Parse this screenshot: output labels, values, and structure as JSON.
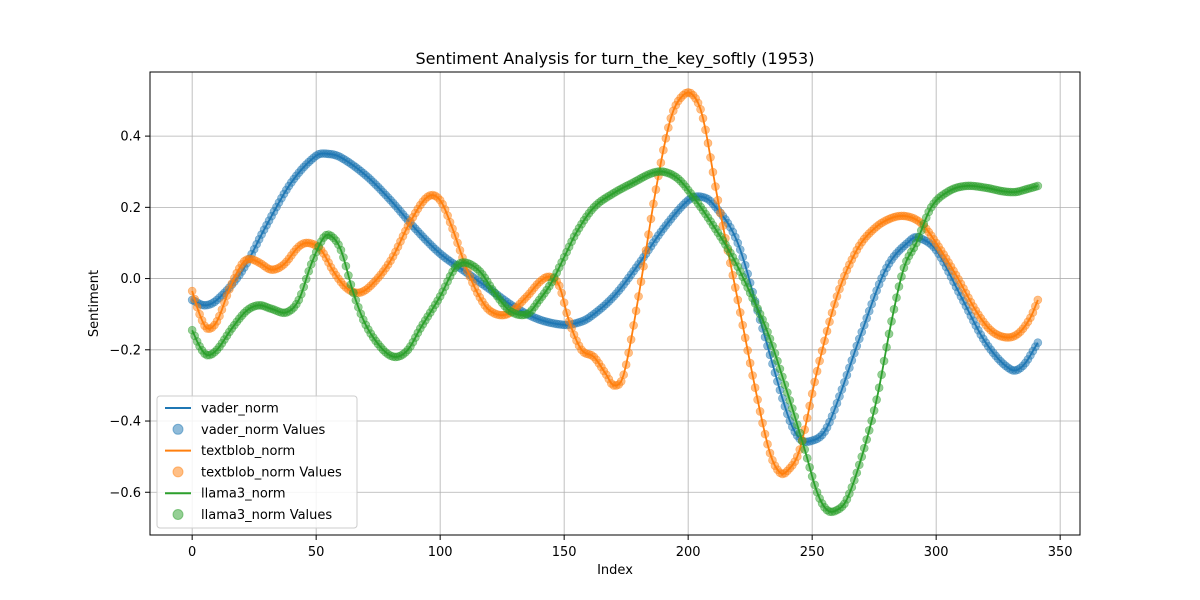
{
  "chart_data": {
    "type": "line",
    "title": "Sentiment Analysis for turn_the_key_softly (1953)",
    "xlabel": "Index",
    "ylabel": "Sentiment",
    "xlim": [
      -17,
      358
    ],
    "ylim": [
      -0.72,
      0.58
    ],
    "xticks": [
      0,
      50,
      100,
      150,
      200,
      250,
      300,
      350
    ],
    "yticks": [
      -0.6,
      -0.4,
      -0.2,
      0.0,
      0.2,
      0.4
    ],
    "ytick_labels": [
      "−0.6",
      "−0.4",
      "−0.2",
      "0.0",
      "0.2",
      "0.4"
    ],
    "grid": true,
    "legend_position": "lower-left",
    "x_range": [
      0,
      341
    ],
    "series": [
      {
        "name": "vader_norm",
        "scatter_name": "vader_norm Values",
        "color": "#1f77b4",
        "keypoints": [
          [
            0,
            -0.06
          ],
          [
            5,
            -0.075
          ],
          [
            10,
            -0.06
          ],
          [
            20,
            0.02
          ],
          [
            30,
            0.15
          ],
          [
            40,
            0.27
          ],
          [
            50,
            0.345
          ],
          [
            55,
            0.35
          ],
          [
            60,
            0.34
          ],
          [
            70,
            0.29
          ],
          [
            80,
            0.22
          ],
          [
            90,
            0.14
          ],
          [
            100,
            0.07
          ],
          [
            110,
            0.02
          ],
          [
            120,
            -0.03
          ],
          [
            130,
            -0.08
          ],
          [
            140,
            -0.115
          ],
          [
            150,
            -0.13
          ],
          [
            155,
            -0.125
          ],
          [
            160,
            -0.11
          ],
          [
            170,
            -0.05
          ],
          [
            180,
            0.04
          ],
          [
            190,
            0.14
          ],
          [
            200,
            0.22
          ],
          [
            205,
            0.23
          ],
          [
            210,
            0.21
          ],
          [
            220,
            0.1
          ],
          [
            230,
            -0.14
          ],
          [
            240,
            -0.38
          ],
          [
            245,
            -0.45
          ],
          [
            250,
            -0.455
          ],
          [
            255,
            -0.43
          ],
          [
            260,
            -0.35
          ],
          [
            270,
            -0.15
          ],
          [
            280,
            0.03
          ],
          [
            290,
            0.11
          ],
          [
            293,
            0.115
          ],
          [
            300,
            0.08
          ],
          [
            310,
            -0.05
          ],
          [
            320,
            -0.18
          ],
          [
            330,
            -0.255
          ],
          [
            335,
            -0.245
          ],
          [
            341,
            -0.18
          ]
        ]
      },
      {
        "name": "textblob_norm",
        "scatter_name": "textblob_norm Values",
        "color": "#ff7f0e",
        "keypoints": [
          [
            0,
            -0.035
          ],
          [
            3,
            -0.1
          ],
          [
            6,
            -0.14
          ],
          [
            10,
            -0.12
          ],
          [
            15,
            -0.03
          ],
          [
            20,
            0.04
          ],
          [
            23,
            0.055
          ],
          [
            27,
            0.045
          ],
          [
            32,
            0.025
          ],
          [
            37,
            0.04
          ],
          [
            43,
            0.09
          ],
          [
            47,
            0.1
          ],
          [
            52,
            0.08
          ],
          [
            57,
            0.02
          ],
          [
            62,
            -0.025
          ],
          [
            67,
            -0.04
          ],
          [
            72,
            -0.02
          ],
          [
            80,
            0.05
          ],
          [
            88,
            0.16
          ],
          [
            95,
            0.23
          ],
          [
            100,
            0.22
          ],
          [
            105,
            0.14
          ],
          [
            110,
            0.04
          ],
          [
            115,
            -0.04
          ],
          [
            120,
            -0.09
          ],
          [
            127,
            -0.1
          ],
          [
            135,
            -0.05
          ],
          [
            140,
            -0.01
          ],
          [
            144,
            0.005
          ],
          [
            148,
            -0.02
          ],
          [
            152,
            -0.12
          ],
          [
            157,
            -0.2
          ],
          [
            162,
            -0.22
          ],
          [
            167,
            -0.27
          ],
          [
            170,
            -0.3
          ],
          [
            174,
            -0.27
          ],
          [
            180,
            -0.05
          ],
          [
            187,
            0.25
          ],
          [
            193,
            0.45
          ],
          [
            198,
            0.515
          ],
          [
            202,
            0.515
          ],
          [
            206,
            0.45
          ],
          [
            212,
            0.22
          ],
          [
            220,
            -0.06
          ],
          [
            228,
            -0.34
          ],
          [
            233,
            -0.49
          ],
          [
            237,
            -0.545
          ],
          [
            240,
            -0.54
          ],
          [
            245,
            -0.48
          ],
          [
            252,
            -0.26
          ],
          [
            260,
            -0.05
          ],
          [
            268,
            0.08
          ],
          [
            275,
            0.14
          ],
          [
            282,
            0.17
          ],
          [
            288,
            0.175
          ],
          [
            294,
            0.155
          ],
          [
            300,
            0.1
          ],
          [
            308,
            0.01
          ],
          [
            316,
            -0.09
          ],
          [
            322,
            -0.145
          ],
          [
            328,
            -0.165
          ],
          [
            333,
            -0.155
          ],
          [
            338,
            -0.11
          ],
          [
            341,
            -0.06
          ]
        ]
      },
      {
        "name": "llama3_norm",
        "scatter_name": "llama3_norm Values",
        "color": "#2ca02c",
        "keypoints": [
          [
            0,
            -0.145
          ],
          [
            3,
            -0.19
          ],
          [
            6,
            -0.215
          ],
          [
            10,
            -0.2
          ],
          [
            16,
            -0.14
          ],
          [
            22,
            -0.09
          ],
          [
            27,
            -0.075
          ],
          [
            32,
            -0.085
          ],
          [
            38,
            -0.095
          ],
          [
            43,
            -0.06
          ],
          [
            48,
            0.04
          ],
          [
            53,
            0.115
          ],
          [
            56,
            0.12
          ],
          [
            60,
            0.08
          ],
          [
            65,
            -0.04
          ],
          [
            70,
            -0.13
          ],
          [
            77,
            -0.2
          ],
          [
            82,
            -0.22
          ],
          [
            87,
            -0.2
          ],
          [
            92,
            -0.14
          ],
          [
            100,
            -0.05
          ],
          [
            106,
            0.03
          ],
          [
            110,
            0.045
          ],
          [
            116,
            0.02
          ],
          [
            122,
            -0.04
          ],
          [
            128,
            -0.09
          ],
          [
            135,
            -0.1
          ],
          [
            140,
            -0.06
          ],
          [
            145,
            -0.01
          ],
          [
            150,
            0.06
          ],
          [
            155,
            0.13
          ],
          [
            162,
            0.2
          ],
          [
            170,
            0.24
          ],
          [
            178,
            0.27
          ],
          [
            185,
            0.295
          ],
          [
            190,
            0.3
          ],
          [
            196,
            0.28
          ],
          [
            202,
            0.23
          ],
          [
            210,
            0.15
          ],
          [
            218,
            0.06
          ],
          [
            225,
            -0.04
          ],
          [
            232,
            -0.15
          ],
          [
            240,
            -0.32
          ],
          [
            247,
            -0.48
          ],
          [
            252,
            -0.6
          ],
          [
            256,
            -0.65
          ],
          [
            260,
            -0.65
          ],
          [
            264,
            -0.62
          ],
          [
            270,
            -0.5
          ],
          [
            276,
            -0.34
          ],
          [
            282,
            -0.12
          ],
          [
            287,
            0.03
          ],
          [
            292,
            0.1
          ],
          [
            298,
            0.2
          ],
          [
            305,
            0.245
          ],
          [
            312,
            0.26
          ],
          [
            320,
            0.255
          ],
          [
            327,
            0.245
          ],
          [
            332,
            0.243
          ],
          [
            336,
            0.25
          ],
          [
            341,
            0.26
          ]
        ]
      }
    ]
  }
}
